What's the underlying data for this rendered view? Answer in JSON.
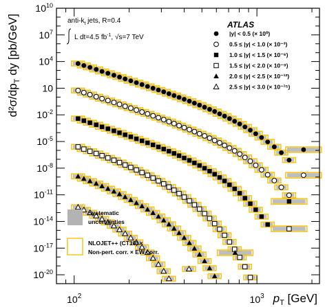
{
  "chart_data": {
    "type": "scatter",
    "title": "ATLAS",
    "xlabel_main": "p",
    "xlabel_sub": "T",
    "xlabel_unit": " [GeV]",
    "ylabel_main": "d²σ/dp",
    "ylabel_sub": "T",
    "ylabel_tail": " dy [pb/GeV]",
    "x_scale": "log",
    "y_scale": "log",
    "xlim": [
      80,
      2200
    ],
    "ylim": [
      1e-21,
      10000000000.0
    ],
    "x_ticks": [
      {
        "value": 100,
        "base": "10",
        "exp": "2"
      },
      {
        "value": 1000,
        "base": "10",
        "exp": "3"
      }
    ],
    "y_ticks": [
      {
        "value": 1e-20,
        "base": "10",
        "exp": "-20"
      },
      {
        "value": 1e-17,
        "base": "10",
        "exp": "-17"
      },
      {
        "value": 1e-14,
        "base": "10",
        "exp": "-14"
      },
      {
        "value": 1e-11,
        "base": "10",
        "exp": "-11"
      },
      {
        "value": 1e-08,
        "base": "10",
        "exp": "-8"
      },
      {
        "value": 1e-05,
        "base": "10",
        "exp": "-5"
      },
      {
        "value": 0.01,
        "base": "10",
        "exp": "-2"
      },
      {
        "value": 10,
        "base": "10",
        "exp": ""
      },
      {
        "value": 10000.0,
        "base": "10",
        "exp": "4"
      },
      {
        "value": 10000000.0,
        "base": "10",
        "exp": "7"
      },
      {
        "value": 10000000000.0,
        "base": "10",
        "exp": "10"
      }
    ],
    "annotations": {
      "line1": "anti-k",
      "line1_sub": "t",
      "line1_rest": " jets,  R=0.4",
      "line2": "L dt=4.5 fb",
      "line2_sup": "-1",
      "line2_rest": ",   √s=7 TeV"
    },
    "legend_position": "top-right",
    "series": [
      {
        "name": "|y| < 0.5 (× 10⁰)",
        "marker": "filled-circle",
        "x": [
          105,
          113,
          122,
          132,
          142,
          153,
          165,
          177,
          190,
          204,
          219,
          235,
          252,
          270,
          289,
          309,
          330,
          352,
          375,
          400,
          427,
          455,
          485,
          517,
          551,
          587,
          625,
          665,
          708,
          755,
          805,
          860,
          920,
          985,
          1060,
          1145,
          1245,
          1360,
          1500,
          1800
        ],
        "y": [
          6000.0,
          3600.0,
          2200.0,
          1300.0,
          770,
          480,
          290,
          180,
          110,
          68,
          42,
          26,
          16,
          10,
          6.3,
          3.9,
          2.4,
          1.5,
          0.93,
          0.57,
          0.35,
          0.21,
          0.125,
          0.073,
          0.042,
          0.024,
          0.013,
          0.0072,
          0.0038,
          0.0019,
          0.00095,
          0.00044,
          0.00019,
          7.5e-05,
          2.8e-05,
          9e-06,
          2.5e-06,
          5.5e-07,
          8e-08,
          1.2e-06
        ]
      },
      {
        "name": "0.5 ≤ |y| < 1.0 (× 10⁻³)",
        "marker": "open-circle",
        "x": [
          105,
          113,
          122,
          132,
          142,
          153,
          165,
          177,
          190,
          204,
          219,
          235,
          252,
          270,
          289,
          309,
          330,
          352,
          375,
          400,
          427,
          455,
          485,
          517,
          551,
          587,
          625,
          665,
          708,
          755,
          805,
          860,
          920,
          985,
          1060,
          1145,
          1245,
          1360,
          1500,
          1800
        ],
        "y": [
          5.5,
          3.2,
          1.9,
          1.1,
          0.67,
          0.41,
          0.25,
          0.152,
          0.092,
          0.057,
          0.035,
          0.021,
          0.013,
          0.0079,
          0.0048,
          0.0029,
          0.00175,
          0.00105,
          0.00062,
          0.00037,
          0.00022,
          0.00013,
          7.5e-05,
          4.3e-05,
          2.4e-05,
          1.32e-05,
          7.1e-06,
          3.7e-06,
          1.85e-06,
          8.8e-07,
          3.9e-07,
          1.6e-07,
          6.1e-08,
          2.1e-08,
          6.5e-09,
          1.8e-09,
          4e-10,
          7e-11,
          9e-12,
          1.6e-09
        ]
      },
      {
        "name": "1.0 ≤ |y| < 1.5 (× 10⁻⁶)",
        "marker": "filled-square",
        "x": [
          105,
          113,
          122,
          132,
          142,
          153,
          165,
          177,
          190,
          204,
          219,
          235,
          252,
          270,
          289,
          309,
          330,
          352,
          375,
          400,
          427,
          455,
          485,
          517,
          551,
          587,
          625,
          665,
          708,
          755,
          805,
          860,
          920,
          985,
          1060,
          1145,
          1500
        ],
        "y": [
          0.0038,
          0.0022,
          0.0013,
          0.00076,
          0.00045,
          0.00027,
          0.00016,
          9.6e-05,
          5.7e-05,
          3.4e-05,
          2e-05,
          1.2e-05,
          7.1e-06,
          4.2e-06,
          2.45e-06,
          1.42e-06,
          8.1e-07,
          4.6e-07,
          2.55e-07,
          1.4e-07,
          7.5e-08,
          3.9e-08,
          2e-08,
          9.8e-09,
          4.6e-09,
          2.1e-09,
          9e-10,
          3.6e-10,
          1.35e-10,
          4.7e-11,
          1.5e-11,
          4.2e-12,
          1e-12,
          2.1e-13,
          3.5e-14,
          4.5e-15,
          1.8e-12
        ]
      },
      {
        "name": "1.5 ≤ |y| < 2.0 (× 10⁻⁹)",
        "marker": "open-square",
        "x": [
          105,
          113,
          122,
          132,
          142,
          153,
          165,
          177,
          190,
          204,
          219,
          235,
          252,
          270,
          289,
          309,
          330,
          352,
          375,
          400,
          427,
          455,
          485,
          517,
          551,
          587,
          625,
          665,
          708,
          755,
          805,
          860,
          920,
          985,
          1500
        ],
        "y": [
          2.5e-06,
          1.4e-06,
          8e-07,
          4.5e-07,
          2.55e-07,
          1.43e-07,
          7.9e-08,
          4.3e-08,
          2.3e-08,
          1.22e-08,
          6.3e-09,
          3.2e-09,
          1.6e-09,
          7.8e-10,
          3.7e-10,
          1.7e-10,
          7.6e-11,
          3.3e-11,
          1.38e-11,
          5.5e-12,
          2.1e-12,
          7.5e-13,
          2.5e-13,
          7.7e-14,
          2.2e-14,
          5.7e-15,
          1.35e-15,
          2.8e-16,
          5e-17,
          7.5e-18,
          9e-19,
          8e-20,
          5e-21,
          2e-22,
          1.5e-15
        ]
      },
      {
        "name": "2.0 ≤ |y| < 2.5 (× 10⁻¹²)",
        "marker": "filled-triangle",
        "x": [
          105,
          113,
          122,
          132,
          142,
          153,
          165,
          177,
          190,
          204,
          219,
          235,
          252,
          270,
          289,
          309,
          330,
          352,
          375,
          400,
          427,
          455,
          485,
          517,
          551,
          587,
          625,
          665,
          760
        ],
        "y": [
          1.2e-09,
          6.5e-10,
          3.5e-10,
          1.85e-10,
          9.6e-11,
          4.9e-11,
          2.45e-11,
          1.2e-11,
          5.7e-12,
          2.65e-12,
          1.2e-12,
          5.3e-13,
          2.25e-13,
          9.2e-14,
          3.6e-14,
          1.35e-14,
          4.8e-15,
          1.6e-15,
          5e-16,
          1.45e-16,
          3.8e-17,
          9e-18,
          1.9e-18,
          3.5e-19,
          5.5e-20,
          7e-21,
          7e-22,
          5e-23,
          3e-18
        ]
      },
      {
        "name": "2.5 ≤ |y| < 3.0 (× 10⁻¹⁵)",
        "marker": "open-triangle",
        "x": [
          105,
          113,
          122,
          132,
          142,
          153,
          165,
          177,
          190,
          204,
          219,
          235,
          252,
          270,
          289,
          309,
          330,
          352,
          425
        ],
        "y": [
          4e-13,
          2e-13,
          9.5e-14,
          4.3e-14,
          1.9e-14,
          8e-15,
          3.2e-15,
          1.2e-15,
          4.3e-16,
          1.42e-16,
          4.4e-17,
          1.25e-17,
          3.2e-18,
          7.2e-19,
          1.45e-19,
          2.5e-20,
          3.6e-21,
          4.2e-22,
          4.5e-20
        ]
      }
    ],
    "legend_extra": [
      {
        "label_line1": "Systematic",
        "label_line2": "uncertainties",
        "style": "gray-box"
      },
      {
        "label_line1": "NLOJET++ (CT10) ×",
        "label_line2": "Non-pert. corr. × EW corr.",
        "style": "yellow-outline"
      }
    ],
    "colors": {
      "systematic": "#b3b3b3",
      "theory": "#f5c518",
      "marker": "#000000"
    }
  }
}
